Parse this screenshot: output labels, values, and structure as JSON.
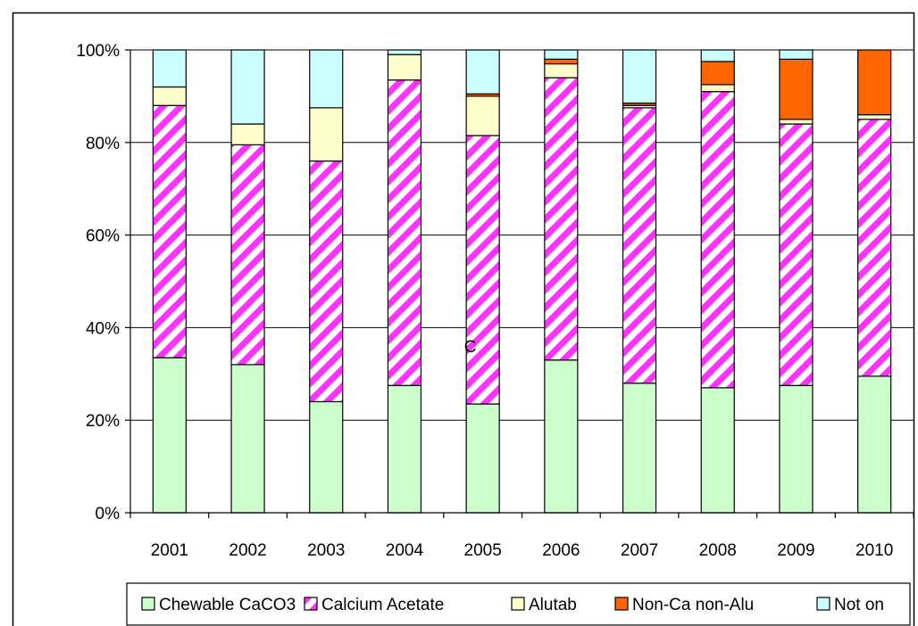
{
  "chart_data": {
    "type": "bar",
    "stacked": true,
    "percent": true,
    "categories": [
      "2001",
      "2002",
      "2003",
      "2004",
      "2005",
      "2006",
      "2007",
      "2008",
      "2009",
      "2010"
    ],
    "series": [
      {
        "name": "Chewable CaCO3",
        "color": "#ccffcc",
        "pattern": "solid",
        "values": [
          33.5,
          32.0,
          24.0,
          27.5,
          23.5,
          33.0,
          28.0,
          27.0,
          27.5,
          29.5
        ]
      },
      {
        "name": "Calcium Acetate",
        "color": "#ff33ff",
        "pattern": "diagonal-stripes",
        "values": [
          54.5,
          47.5,
          52.0,
          66.0,
          58.0,
          61.0,
          59.5,
          64.0,
          56.5,
          55.5
        ]
      },
      {
        "name": "Alutab",
        "color": "#ffffcc",
        "pattern": "solid",
        "values": [
          4.0,
          4.5,
          11.5,
          5.5,
          8.5,
          3.0,
          0.5,
          1.5,
          1.0,
          1.0
        ]
      },
      {
        "name": "Non-Ca non-Alu",
        "color": "#ff6600",
        "pattern": "solid",
        "values": [
          0.0,
          0.0,
          0.0,
          0.0,
          0.5,
          1.0,
          0.5,
          5.0,
          13.0,
          14.0
        ]
      },
      {
        "name": "Not on",
        "color": "#ccffff",
        "pattern": "solid",
        "values": [
          8.0,
          16.0,
          12.5,
          1.0,
          9.5,
          2.0,
          11.5,
          2.5,
          2.0,
          0.0
        ]
      }
    ],
    "y_ticks": [
      "0%",
      "20%",
      "40%",
      "60%",
      "80%",
      "100%"
    ],
    "ylim": [
      0,
      100
    ],
    "grid": true,
    "legend_position": "bottom",
    "annotation": {
      "text": "C",
      "category": "2005",
      "y": 36
    }
  }
}
